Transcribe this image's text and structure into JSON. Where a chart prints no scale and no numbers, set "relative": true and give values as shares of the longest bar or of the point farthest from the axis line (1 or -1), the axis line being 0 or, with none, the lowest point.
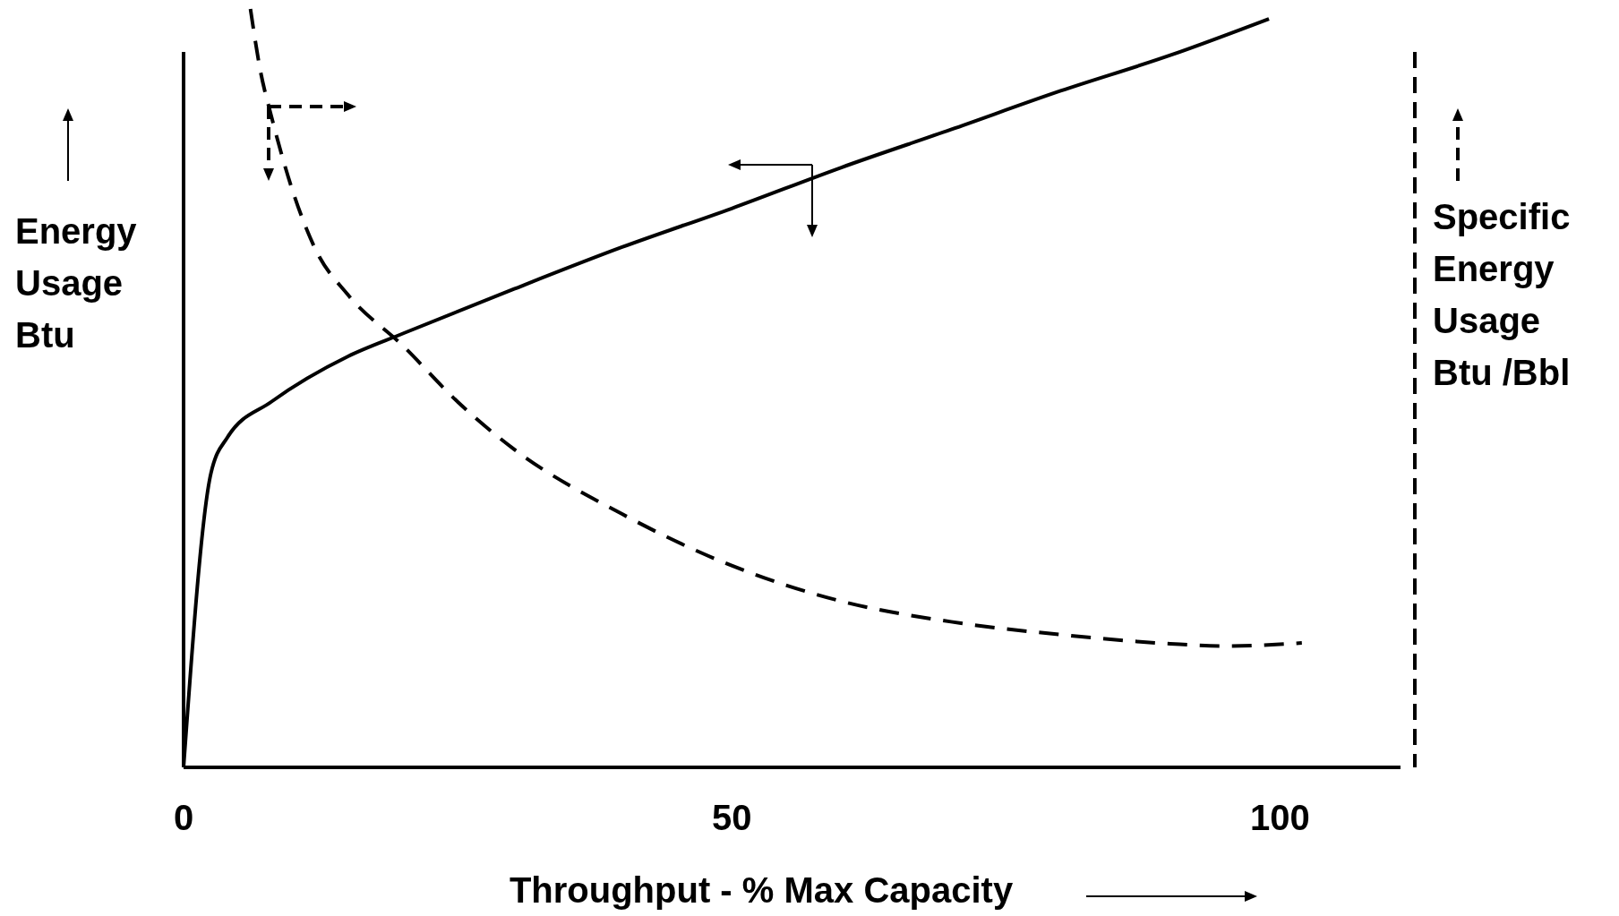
{
  "chart_data": {
    "type": "line",
    "relative": true,
    "xlabel": "Throughput - % Max Capacity",
    "ylabel": "Energy\nUsage\nBtu",
    "y2label": "Specific\nEnergy\nUsage\nBtu /Bbl",
    "xlim": [
      0,
      111
    ],
    "xticks": [
      0,
      50,
      100
    ],
    "series": [
      {
        "color": "#000000",
        "line_style": "solid",
        "x": [
          0,
          2.5,
          4,
          8,
          15,
          20,
          30,
          40,
          50,
          60,
          70,
          80,
          90,
          99
        ],
        "values": [
          0,
          0.388,
          0.435,
          0.482,
          0.542,
          0.572,
          0.63,
          0.686,
          0.737,
          0.791,
          0.841,
          0.892,
          0.939,
          0.987
        ]
      },
      {
        "color": "#000000",
        "line_style": "dashed",
        "x": [
          6.1,
          7,
          8,
          10,
          12,
          15,
          20,
          25,
          30,
          40,
          50,
          60,
          70,
          80,
          90,
          95,
          102
        ],
        "values": [
          1,
          0.919,
          0.859,
          0.758,
          0.684,
          0.623,
          0.556,
          0.482,
          0.421,
          0.334,
          0.266,
          0.219,
          0.192,
          0.175,
          0.163,
          0.16,
          0.164
        ]
      }
    ]
  }
}
